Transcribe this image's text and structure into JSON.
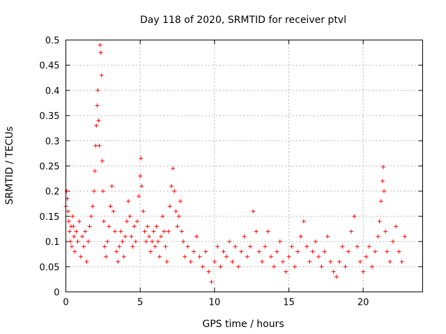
{
  "chart_data": {
    "type": "scatter",
    "title": "Day 118 of 2020, SRMTID for receiver ptvl",
    "xlabel": "GPS time / hours",
    "ylabel": "SRMTID / TECUs",
    "xlim": [
      0,
      24
    ],
    "ylim": [
      0,
      0.5
    ],
    "xticks": [
      0,
      5,
      10,
      15,
      20
    ],
    "yticks": [
      0,
      0.05,
      0.1,
      0.15,
      0.2,
      0.25,
      0.3,
      0.35,
      0.4,
      0.45,
      0.5
    ],
    "xtick_labels": [
      "0",
      "5",
      "10",
      "15",
      "20"
    ],
    "ytick_labels": [
      "0",
      "0.05",
      "0.1",
      "0.15",
      "0.2",
      "0.25",
      "0.3",
      "0.35",
      "0.4",
      "0.45",
      "0.5"
    ],
    "grid": true,
    "marker": "+",
    "series": [
      {
        "name": "SRMTID",
        "color": "#ff0000",
        "points": [
          [
            0.0,
            0.17
          ],
          [
            0.05,
            0.2
          ],
          [
            0.1,
            0.185
          ],
          [
            0.15,
            0.16
          ],
          [
            0.2,
            0.14
          ],
          [
            0.25,
            0.12
          ],
          [
            0.3,
            0.1
          ],
          [
            0.35,
            0.13
          ],
          [
            0.4,
            0.09
          ],
          [
            0.45,
            0.15
          ],
          [
            0.5,
            0.13
          ],
          [
            0.55,
            0.11
          ],
          [
            0.6,
            0.08
          ],
          [
            0.7,
            0.12
          ],
          [
            0.8,
            0.1
          ],
          [
            0.9,
            0.14
          ],
          [
            1.0,
            0.07
          ],
          [
            1.1,
            0.11
          ],
          [
            1.2,
            0.09
          ],
          [
            1.3,
            0.12
          ],
          [
            1.4,
            0.06
          ],
          [
            1.5,
            0.1
          ],
          [
            1.6,
            0.13
          ],
          [
            1.7,
            0.15
          ],
          [
            1.8,
            0.17
          ],
          [
            1.9,
            0.2
          ],
          [
            1.95,
            0.24
          ],
          [
            2.0,
            0.29
          ],
          [
            2.05,
            0.33
          ],
          [
            2.1,
            0.37
          ],
          [
            2.15,
            0.4
          ],
          [
            2.2,
            0.34
          ],
          [
            2.25,
            0.29
          ],
          [
            2.3,
            0.49
          ],
          [
            2.35,
            0.475
          ],
          [
            2.4,
            0.43
          ],
          [
            2.45,
            0.26
          ],
          [
            2.5,
            0.2
          ],
          [
            2.55,
            0.14
          ],
          [
            2.6,
            0.09
          ],
          [
            2.7,
            0.07
          ],
          [
            2.8,
            0.1
          ],
          [
            2.9,
            0.13
          ],
          [
            3.0,
            0.17
          ],
          [
            3.1,
            0.21
          ],
          [
            3.2,
            0.16
          ],
          [
            3.3,
            0.12
          ],
          [
            3.4,
            0.08
          ],
          [
            3.5,
            0.06
          ],
          [
            3.6,
            0.09
          ],
          [
            3.7,
            0.12
          ],
          [
            3.8,
            0.1
          ],
          [
            3.9,
            0.07
          ],
          [
            4.0,
            0.11
          ],
          [
            4.1,
            0.14
          ],
          [
            4.2,
            0.18
          ],
          [
            4.3,
            0.15
          ],
          [
            4.4,
            0.11
          ],
          [
            4.5,
            0.09
          ],
          [
            4.6,
            0.13
          ],
          [
            4.7,
            0.1
          ],
          [
            4.8,
            0.14
          ],
          [
            4.9,
            0.19
          ],
          [
            5.0,
            0.23
          ],
          [
            5.05,
            0.265
          ],
          [
            5.1,
            0.21
          ],
          [
            5.2,
            0.16
          ],
          [
            5.3,
            0.12
          ],
          [
            5.4,
            0.1
          ],
          [
            5.5,
            0.13
          ],
          [
            5.6,
            0.11
          ],
          [
            5.7,
            0.08
          ],
          [
            5.8,
            0.1
          ],
          [
            5.9,
            0.12
          ],
          [
            6.0,
            0.09
          ],
          [
            6.1,
            0.13
          ],
          [
            6.2,
            0.1
          ],
          [
            6.3,
            0.07
          ],
          [
            6.4,
            0.11
          ],
          [
            6.5,
            0.15
          ],
          [
            6.6,
            0.12
          ],
          [
            6.7,
            0.09
          ],
          [
            6.8,
            0.06
          ],
          [
            6.9,
            0.12
          ],
          [
            7.0,
            0.17
          ],
          [
            7.1,
            0.21
          ],
          [
            7.2,
            0.245
          ],
          [
            7.3,
            0.2
          ],
          [
            7.4,
            0.16
          ],
          [
            7.5,
            0.13
          ],
          [
            7.6,
            0.15
          ],
          [
            7.7,
            0.18
          ],
          [
            7.8,
            0.12
          ],
          [
            7.9,
            0.1
          ],
          [
            8.0,
            0.07
          ],
          [
            8.2,
            0.09
          ],
          [
            8.4,
            0.06
          ],
          [
            8.6,
            0.08
          ],
          [
            8.8,
            0.11
          ],
          [
            9.0,
            0.07
          ],
          [
            9.2,
            0.05
          ],
          [
            9.4,
            0.08
          ],
          [
            9.6,
            0.04
          ],
          [
            9.8,
            0.02
          ],
          [
            10.0,
            0.06
          ],
          [
            10.2,
            0.09
          ],
          [
            10.4,
            0.05
          ],
          [
            10.6,
            0.08
          ],
          [
            10.8,
            0.07
          ],
          [
            11.0,
            0.1
          ],
          [
            11.2,
            0.06
          ],
          [
            11.4,
            0.09
          ],
          [
            11.6,
            0.05
          ],
          [
            11.8,
            0.08
          ],
          [
            12.0,
            0.11
          ],
          [
            12.2,
            0.07
          ],
          [
            12.4,
            0.09
          ],
          [
            12.6,
            0.16
          ],
          [
            12.8,
            0.12
          ],
          [
            13.0,
            0.08
          ],
          [
            13.2,
            0.06
          ],
          [
            13.4,
            0.09
          ],
          [
            13.6,
            0.12
          ],
          [
            13.8,
            0.07
          ],
          [
            14.0,
            0.05
          ],
          [
            14.2,
            0.08
          ],
          [
            14.4,
            0.1
          ],
          [
            14.6,
            0.06
          ],
          [
            14.8,
            0.04
          ],
          [
            15.0,
            0.07
          ],
          [
            15.2,
            0.09
          ],
          [
            15.4,
            0.05
          ],
          [
            15.6,
            0.08
          ],
          [
            15.8,
            0.11
          ],
          [
            16.0,
            0.14
          ],
          [
            16.2,
            0.09
          ],
          [
            16.4,
            0.06
          ],
          [
            16.6,
            0.08
          ],
          [
            16.8,
            0.1
          ],
          [
            17.0,
            0.07
          ],
          [
            17.2,
            0.05
          ],
          [
            17.4,
            0.08
          ],
          [
            17.6,
            0.11
          ],
          [
            17.8,
            0.06
          ],
          [
            18.0,
            0.04
          ],
          [
            18.2,
            0.03
          ],
          [
            18.4,
            0.06
          ],
          [
            18.6,
            0.09
          ],
          [
            18.8,
            0.05
          ],
          [
            19.0,
            0.08
          ],
          [
            19.2,
            0.12
          ],
          [
            19.4,
            0.15
          ],
          [
            19.6,
            0.09
          ],
          [
            19.8,
            0.06
          ],
          [
            20.0,
            0.04
          ],
          [
            20.2,
            0.07
          ],
          [
            20.4,
            0.09
          ],
          [
            20.6,
            0.05
          ],
          [
            20.8,
            0.08
          ],
          [
            21.0,
            0.11
          ],
          [
            21.1,
            0.14
          ],
          [
            21.2,
            0.18
          ],
          [
            21.3,
            0.22
          ],
          [
            21.35,
            0.248
          ],
          [
            21.4,
            0.2
          ],
          [
            21.5,
            0.12
          ],
          [
            21.6,
            0.08
          ],
          [
            21.8,
            0.06
          ],
          [
            22.0,
            0.1
          ],
          [
            22.2,
            0.13
          ],
          [
            22.4,
            0.08
          ],
          [
            22.6,
            0.06
          ],
          [
            22.8,
            0.11
          ]
        ]
      }
    ]
  }
}
